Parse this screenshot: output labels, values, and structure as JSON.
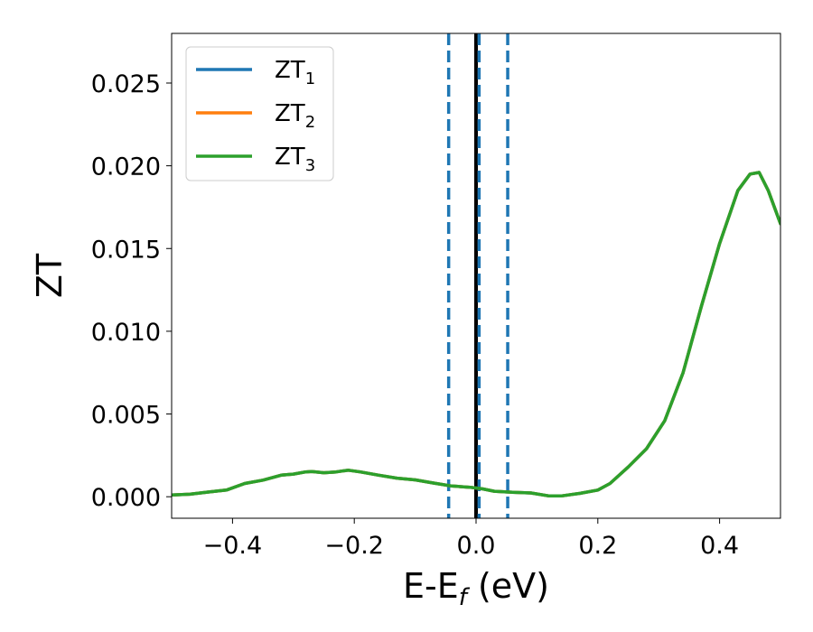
{
  "chart_data": {
    "type": "line",
    "xlabel_main": "E-E",
    "xlabel_sub": "f",
    "xlabel_unit": " (eV)",
    "ylabel": "ZT",
    "xlim": [
      -0.5,
      0.5
    ],
    "ylim": [
      -0.0013,
      0.028
    ],
    "xticks": [
      -0.4,
      -0.2,
      0.0,
      0.2,
      0.4
    ],
    "xtick_labels": [
      "−0.4",
      "−0.2",
      "0.0",
      "0.2",
      "0.4"
    ],
    "yticks": [
      0.0,
      0.005,
      0.01,
      0.015,
      0.02,
      0.025
    ],
    "ytick_labels": [
      "0.000",
      "0.005",
      "0.010",
      "0.015",
      "0.020",
      "0.025"
    ],
    "legend_position": "top-left",
    "grid": false,
    "series": [
      {
        "name": "ZT",
        "subscript": "1",
        "color": "#1f77b4"
      },
      {
        "name": "ZT",
        "subscript": "2",
        "color": "#ff7f0e"
      },
      {
        "name": "ZT",
        "subscript": "3",
        "color": "#2ca02c"
      }
    ],
    "x": [
      -0.5,
      -0.47,
      -0.44,
      -0.41,
      -0.38,
      -0.35,
      -0.32,
      -0.3,
      -0.28,
      -0.27,
      -0.25,
      -0.23,
      -0.21,
      -0.19,
      -0.16,
      -0.13,
      -0.1,
      -0.07,
      -0.04,
      -0.01,
      0.01,
      0.03,
      0.06,
      0.09,
      0.12,
      0.14,
      0.17,
      0.2,
      0.22,
      0.25,
      0.28,
      0.31,
      0.34,
      0.37,
      0.4,
      0.43,
      0.45,
      0.465,
      0.48,
      0.5
    ],
    "y": [
      0.0001,
      0.00015,
      0.00028,
      0.0004,
      0.0008,
      0.001,
      0.0013,
      0.00137,
      0.0015,
      0.00152,
      0.00145,
      0.0015,
      0.0016,
      0.0015,
      0.0013,
      0.00112,
      0.00102,
      0.00083,
      0.00065,
      0.00057,
      0.00048,
      0.00033,
      0.00027,
      0.00023,
      5e-05,
      5e-05,
      0.0002,
      0.0004,
      0.0008,
      0.0018,
      0.0029,
      0.0046,
      0.0075,
      0.0115,
      0.0153,
      0.0185,
      0.0195,
      0.0196,
      0.0185,
      0.0165
    ],
    "vlines": [
      {
        "x": 0.0,
        "color": "#000000",
        "style": "solid"
      },
      {
        "x": -0.045,
        "color": "#1f77b4",
        "style": "dashed"
      },
      {
        "x": 0.005,
        "color": "#1f77b4",
        "style": "dashed"
      },
      {
        "x": 0.052,
        "color": "#1f77b4",
        "style": "dashed"
      }
    ]
  }
}
